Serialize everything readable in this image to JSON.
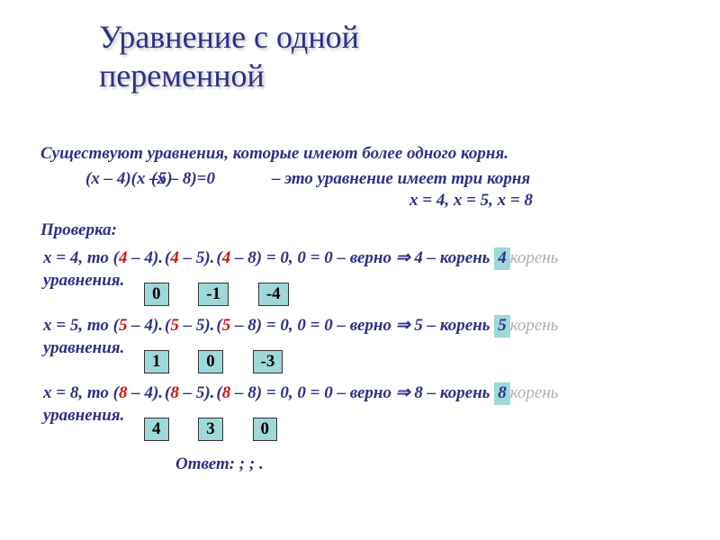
{
  "title1": "Уравнение с одной",
  "title2": "переменной",
  "intro": "Существуют уравнения, которые имеют более одного корня.",
  "eq1": "(х – 4)(х –5)",
  "eq2": "(х – 8)=0",
  "note_dash": "–",
  "note_text": " это уравнение имеет три корня",
  "roots": "х = 4, х = 5, х = 8",
  "check_label": "Проверка:",
  "lines": [
    {
      "xval": "4",
      "p1": "4",
      "p2": "4",
      "p3": "4",
      "tail": " = 0, 0 = 0 – верно ⇒ 4 – корень",
      "ghost": "корень",
      "boxes": [
        "0",
        "-1",
        "-4"
      ],
      "rootbox": "4"
    },
    {
      "xval": "5",
      "p1": "5",
      "p2": "5",
      "p3": "5",
      "tail": " = 0, 0 = 0 – верно ⇒ 5 – корень",
      "ghost": "корень",
      "boxes": [
        "1",
        "0",
        "-3"
      ],
      "rootbox": "5"
    },
    {
      "xval": "8",
      "p1": "8",
      "p2": "8",
      "p3": "8",
      "tail": " = 0, 0 = 0 – верно ⇒ 8 – корень",
      "ghost": "корень",
      "boxes": [
        "4",
        "3",
        "0"
      ],
      "rootbox": "8"
    }
  ],
  "answer_label": "Ответ:",
  "answer_tail": "   ;   ;   .",
  "colors": {
    "title": "#2f2f8a",
    "red": "#d01010",
    "ghost": "#b0b0b0",
    "highlight_bg": "#9fd8d8",
    "bg": "#ffffff"
  },
  "fonts": {
    "title_size": 36,
    "body_size": 19
  }
}
